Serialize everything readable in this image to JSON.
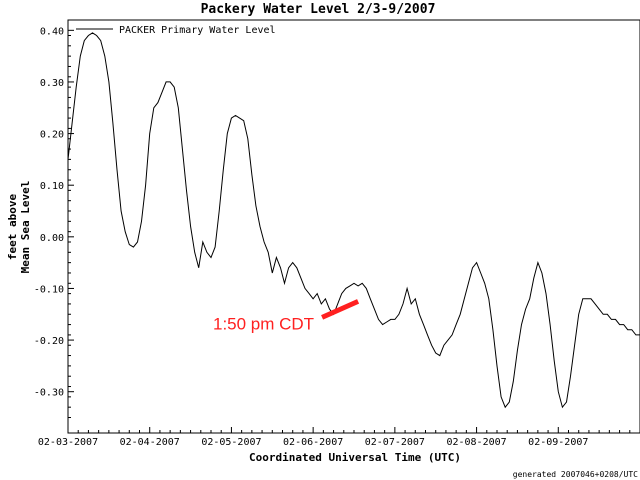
{
  "chart_data": {
    "type": "line",
    "title": "Packery Water Level  2/3-9/2007",
    "xlabel": "Coordinated Universal Time (UTC)",
    "ylabel": [
      "feet above",
      "Mean Sea Level"
    ],
    "xlim": [
      0,
      7
    ],
    "ylim": [
      -0.38,
      0.42
    ],
    "xtick_labels": [
      "02-03-2007",
      "02-04-2007",
      "02-05-2007",
      "02-06-2007",
      "02-07-2007",
      "02-08-2007",
      "02-09-2007"
    ],
    "yticks": [
      0.4,
      0.3,
      0.2,
      0.1,
      0.0,
      -0.1,
      -0.2,
      -0.3
    ],
    "ytick_labels": [
      "0.40",
      "0.30",
      "0.20",
      "0.10",
      "0.00",
      "-0.10",
      "-0.20",
      "-0.30"
    ],
    "grid": false,
    "legend_position": "top-left",
    "series": [
      {
        "name": "PACKER Primary Water Level",
        "color": "#000000",
        "x": [
          0.0,
          0.05,
          0.1,
          0.15,
          0.2,
          0.25,
          0.3,
          0.35,
          0.4,
          0.45,
          0.5,
          0.55,
          0.6,
          0.65,
          0.7,
          0.75,
          0.8,
          0.85,
          0.9,
          0.95,
          1.0,
          1.05,
          1.1,
          1.15,
          1.2,
          1.25,
          1.3,
          1.35,
          1.4,
          1.45,
          1.5,
          1.55,
          1.6,
          1.65,
          1.7,
          1.75,
          1.8,
          1.85,
          1.9,
          1.95,
          2.0,
          2.05,
          2.1,
          2.15,
          2.2,
          2.25,
          2.3,
          2.35,
          2.4,
          2.45,
          2.5,
          2.55,
          2.6,
          2.65,
          2.7,
          2.75,
          2.8,
          2.85,
          2.9,
          2.95,
          3.0,
          3.05,
          3.1,
          3.15,
          3.2,
          3.25,
          3.3,
          3.35,
          3.4,
          3.45,
          3.5,
          3.55,
          3.6,
          3.65,
          3.7,
          3.75,
          3.8,
          3.85,
          3.9,
          3.95,
          4.0,
          4.05,
          4.1,
          4.15,
          4.2,
          4.25,
          4.3,
          4.35,
          4.4,
          4.45,
          4.5,
          4.55,
          4.6,
          4.65,
          4.7,
          4.75,
          4.8,
          4.85,
          4.9,
          4.95,
          5.0,
          5.05,
          5.1,
          5.15,
          5.2,
          5.25,
          5.3,
          5.35,
          5.4,
          5.45,
          5.5,
          5.55,
          5.6,
          5.65,
          5.7,
          5.75,
          5.8,
          5.85,
          5.9,
          5.95,
          6.0,
          6.05,
          6.1,
          6.15,
          6.2,
          6.25,
          6.3,
          6.35,
          6.4,
          6.45,
          6.5,
          6.55,
          6.6,
          6.65,
          6.7,
          6.75,
          6.8,
          6.85,
          6.9,
          6.95,
          7.0
        ],
        "y": [
          0.15,
          0.22,
          0.29,
          0.35,
          0.38,
          0.39,
          0.395,
          0.39,
          0.38,
          0.35,
          0.3,
          0.22,
          0.13,
          0.05,
          0.01,
          -0.015,
          -0.02,
          -0.01,
          0.03,
          0.1,
          0.2,
          0.25,
          0.26,
          0.28,
          0.3,
          0.3,
          0.29,
          0.25,
          0.17,
          0.09,
          0.02,
          -0.03,
          -0.06,
          -0.01,
          -0.03,
          -0.04,
          -0.02,
          0.05,
          0.13,
          0.2,
          0.23,
          0.235,
          0.23,
          0.225,
          0.19,
          0.12,
          0.06,
          0.02,
          -0.01,
          -0.03,
          -0.07,
          -0.04,
          -0.06,
          -0.09,
          -0.06,
          -0.05,
          -0.06,
          -0.08,
          -0.1,
          -0.11,
          -0.12,
          -0.11,
          -0.13,
          -0.12,
          -0.14,
          -0.15,
          -0.13,
          -0.11,
          -0.1,
          -0.095,
          -0.09,
          -0.095,
          -0.09,
          -0.1,
          -0.12,
          -0.14,
          -0.16,
          -0.17,
          -0.165,
          -0.16,
          -0.16,
          -0.15,
          -0.13,
          -0.1,
          -0.13,
          -0.12,
          -0.15,
          -0.17,
          -0.19,
          -0.21,
          -0.225,
          -0.23,
          -0.21,
          -0.2,
          -0.19,
          -0.17,
          -0.15,
          -0.12,
          -0.09,
          -0.06,
          -0.05,
          -0.07,
          -0.09,
          -0.12,
          -0.18,
          -0.25,
          -0.31,
          -0.33,
          -0.32,
          -0.28,
          -0.22,
          -0.17,
          -0.14,
          -0.12,
          -0.08,
          -0.05,
          -0.07,
          -0.11,
          -0.17,
          -0.24,
          -0.3,
          -0.33,
          -0.32,
          -0.27,
          -0.21,
          -0.15,
          -0.12,
          -0.12,
          -0.12,
          -0.13,
          -0.14,
          -0.15,
          -0.15,
          -0.16,
          -0.16,
          -0.17,
          -0.17,
          -0.18,
          -0.18,
          -0.19,
          -0.19
        ]
      }
    ],
    "annotation": {
      "text": "1:50 pm CDT",
      "color": "#ff2020",
      "x": 3.55,
      "y": -0.125
    },
    "footer": "generated 2007046+0208/UTC"
  }
}
